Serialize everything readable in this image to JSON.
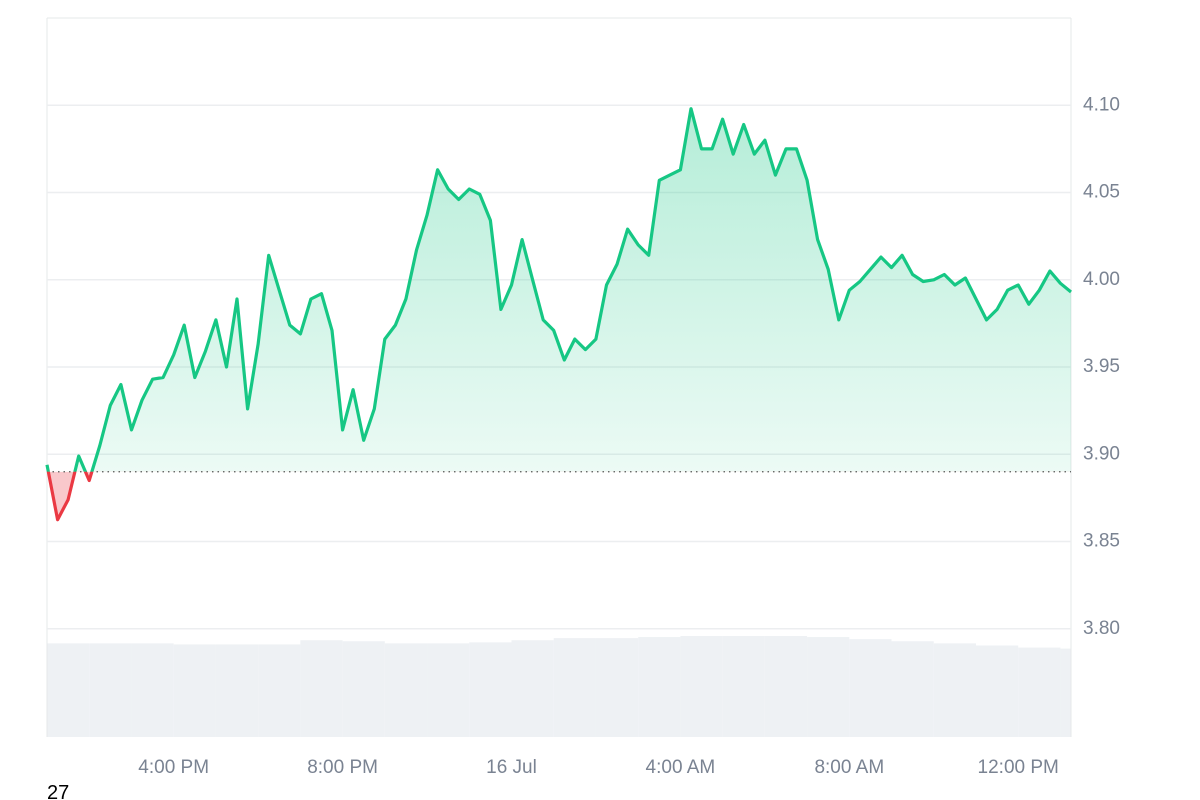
{
  "chart_data": {
    "type": "line",
    "x": [
      13,
      13.25,
      13.5,
      13.75,
      14,
      14.25,
      14.5,
      14.75,
      15,
      15.25,
      15.5,
      15.75,
      16,
      16.25,
      16.5,
      16.75,
      17,
      17.25,
      17.5,
      17.75,
      18,
      18.25,
      18.5,
      18.75,
      19,
      19.25,
      19.5,
      19.75,
      20,
      20.25,
      20.5,
      20.75,
      21,
      21.25,
      21.5,
      21.75,
      22,
      22.25,
      22.5,
      22.75,
      23,
      23.25,
      23.5,
      23.75,
      24,
      24.25,
      24.5,
      24.75,
      25,
      25.25,
      25.5,
      25.75,
      26,
      26.25,
      26.5,
      26.75,
      27,
      27.25,
      27.5,
      27.75,
      28,
      28.25,
      28.5,
      28.75,
      29,
      29.25,
      29.5,
      29.75,
      30,
      30.25,
      30.5,
      30.75,
      31,
      31.25,
      31.5,
      31.75,
      32,
      32.25,
      32.5,
      32.75,
      33,
      33.25,
      33.5,
      33.75,
      34,
      34.25,
      34.5,
      34.75,
      35,
      35.25,
      35.5,
      35.75,
      36,
      36.25,
      36.5,
      36.75,
      37,
      37.25
    ],
    "series": [
      {
        "color": "#16c784",
        "negative_color": "#ea3943",
        "values": [
          3.894,
          3.8625,
          3.874,
          3.899,
          3.885,
          3.905,
          3.928,
          3.94,
          3.914,
          3.931,
          3.943,
          3.944,
          3.957,
          3.974,
          3.944,
          3.959,
          3.977,
          3.95,
          3.989,
          3.926,
          3.963,
          4.014,
          3.994,
          3.974,
          3.969,
          3.989,
          3.992,
          3.971,
          3.914,
          3.937,
          3.908,
          3.926,
          3.966,
          3.974,
          3.989,
          4.017,
          4.037,
          4.063,
          4.052,
          4.046,
          4.052,
          4.049,
          4.034,
          3.983,
          3.997,
          4.023,
          4.0,
          3.977,
          3.971,
          3.954,
          3.966,
          3.96,
          3.966,
          3.997,
          4.009,
          4.029,
          4.02,
          4.014,
          4.057,
          4.06,
          4.063,
          4.098,
          4.075,
          4.075,
          4.092,
          4.072,
          4.089,
          4.072,
          4.08,
          4.06,
          4.075,
          4.075,
          4.057,
          4.023,
          4.006,
          3.977,
          3.994,
          3.999,
          4.006,
          4.013,
          4.007,
          4.014,
          4.003,
          3.999,
          4.0,
          4.003,
          3.997,
          4.001,
          3.989,
          3.977,
          3.983,
          3.994,
          3.997,
          3.986,
          3.994,
          4.005,
          3.998,
          3.993
        ]
      }
    ],
    "baseline": 3.89,
    "volume": {
      "color": "#eef1f4",
      "values": [
        89,
        89,
        89,
        88,
        88,
        88,
        92,
        91,
        89,
        89,
        90,
        92,
        94,
        94,
        95,
        96,
        96,
        96,
        95,
        93,
        91,
        89,
        87,
        85,
        84
      ]
    },
    "xlim": [
      13,
      37.25
    ],
    "xticks": [
      {
        "value": 16,
        "label": "4:00 PM"
      },
      {
        "value": 20,
        "label": "8:00 PM"
      },
      {
        "value": 24,
        "label": "16 Jul"
      },
      {
        "value": 28,
        "label": "4:00 AM"
      },
      {
        "value": 32,
        "label": "8:00 AM"
      },
      {
        "value": 36,
        "label": "12:00 PM"
      }
    ],
    "ylim": [
      3.738,
      4.15
    ],
    "yticks": [
      {
        "value": 3.8,
        "label": "3.80"
      },
      3.85,
      {
        "value": 3.9,
        "label": "3.90"
      },
      3.95,
      {
        "value": 4.0,
        "label": "4.00"
      },
      4.05,
      {
        "value": 4.1,
        "label": "4.10"
      }
    ],
    "grid": true,
    "footnote": "27"
  }
}
